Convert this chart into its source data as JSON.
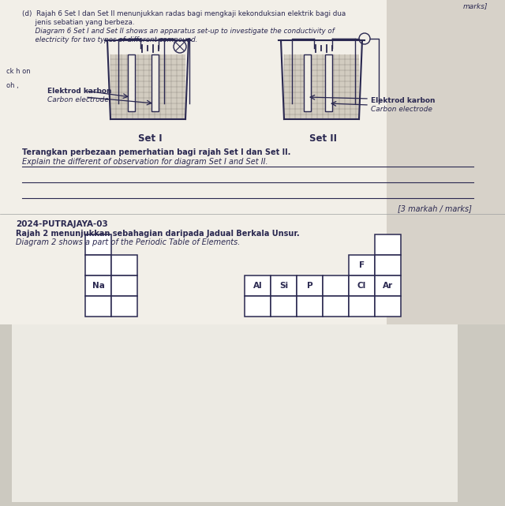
{
  "bg_top": "#e8e5de",
  "bg_bottom": "#ccc9c0",
  "paper_top": "#f2efe8",
  "paper_bottom": "#eceae3",
  "ink": "#2a2850",
  "header_text": "marks]",
  "d_text_1": "(d)  Rajah 6 Set I dan Set II menunjukkan radas bagi mengkaji kekonduksian elektrik bagi dua",
  "d_text_2": "      jenis sebatian yang berbeza.",
  "d_text_3": "      Diagram 6 Set I and Set II shows an apparatus set-up to investigate the conductivity of",
  "d_text_4": "      electricity for two types of different compound.",
  "left_margin_1": "ck h on",
  "left_margin_2": "oh ,",
  "label_left_1": "Elektrod karbon",
  "label_left_2": "Carbon electrode",
  "label_right_1": "Elektrod karbon",
  "label_right_2": "Carbon electrode",
  "set1": "Set I",
  "set2": "Set II",
  "q1": "Terangkan perbezaan pemerhatian bagi rajah Set I dan Set II.",
  "q2": "Explain the different of observation for diagram Set I and Set II.",
  "marks": "[3 markah / marks]",
  "section": "2024-PUTRAJAYA-03",
  "rajah1": "Rajah 2 menunjukkan sebahagian daripada Jadual Berkala Unsur.",
  "rajah2": "Diagram 2 shows a part of the Periodic Table of Elements."
}
